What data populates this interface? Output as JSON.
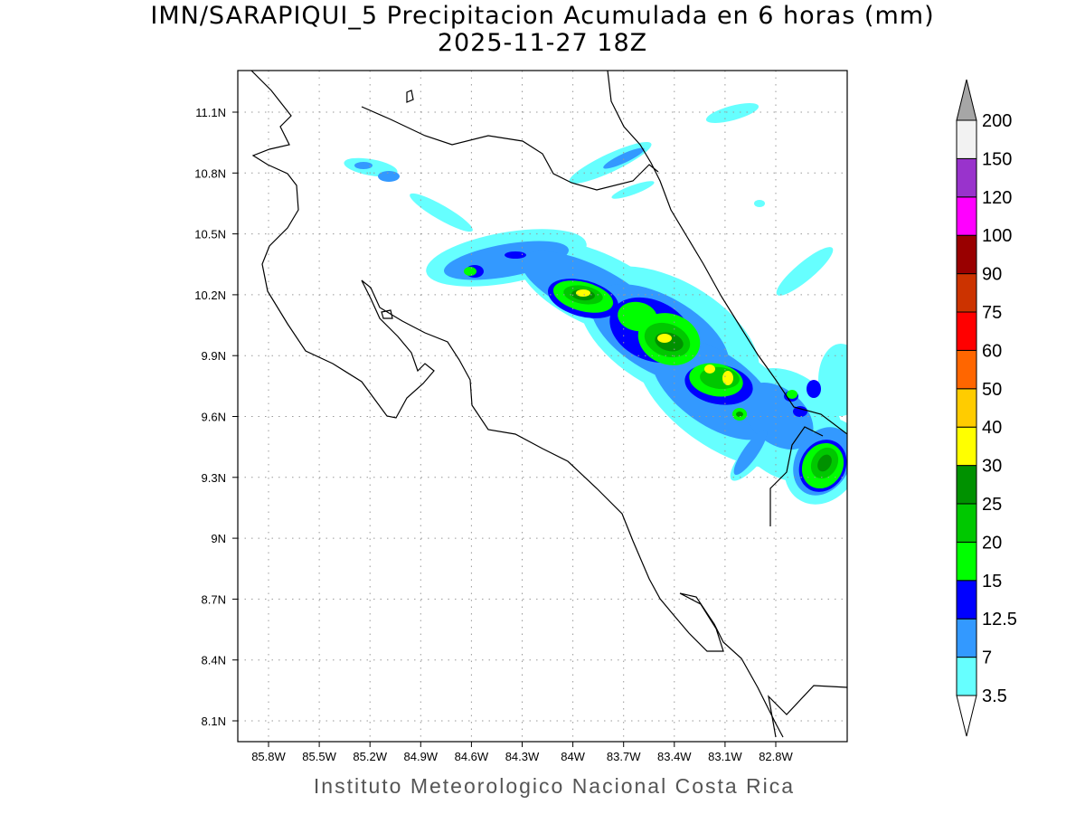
{
  "title": "IMN/SARAPIQUI_5 Precipitacion Acumulada en 6 horas (mm)",
  "subtitle": "2025-11-27 18Z",
  "footer": "Instituto Meteorologico Nacional Costa Rica",
  "lon_ticks": [
    "85.8W",
    "85.5W",
    "85.2W",
    "84.9W",
    "84.6W",
    "84.3W",
    "84W",
    "83.7W",
    "83.4W",
    "83.1W",
    "82.8W"
  ],
  "lat_ticks": [
    "11.1N",
    "10.8N",
    "10.5N",
    "10.2N",
    "9.9N",
    "9.6N",
    "9.3N",
    "9N",
    "8.7N",
    "8.4N",
    "8.1N"
  ],
  "colorbar": {
    "labels": [
      "3.5",
      "7",
      "12.5",
      "15",
      "20",
      "25",
      "30",
      "40",
      "50",
      "60",
      "75",
      "90",
      "100",
      "120",
      "150",
      "200"
    ],
    "colors": [
      "#66ffff",
      "#3399ff",
      "#0000ff",
      "#00ff00",
      "#00c800",
      "#009100",
      "#ffff00",
      "#ffcc00",
      "#ff6600",
      "#ff0000",
      "#cc3300",
      "#990000",
      "#ff00ff",
      "#9933cc",
      "#f2f2f2"
    ],
    "over_color": "#a6a6a6",
    "under_color": "#ffffff"
  }
}
